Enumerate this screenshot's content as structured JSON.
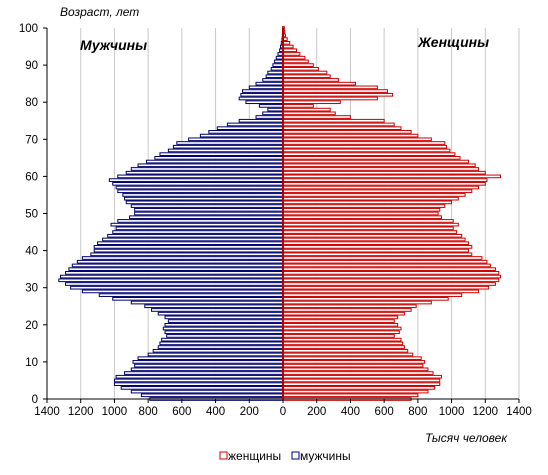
{
  "chart_data": {
    "type": "bar",
    "orientation": "horizontal",
    "subtype": "population-pyramid",
    "y_title": "Возраст,  лет",
    "x_title": "Тысяч человек",
    "left_label": "Мужчины",
    "right_label": "Женщины",
    "xlim": [
      -1400,
      1400
    ],
    "ylim": [
      0,
      100
    ],
    "x_ticks": [
      "1400",
      "1200",
      "1000",
      "800",
      "600",
      "400",
      "200",
      "0",
      "200",
      "400",
      "600",
      "800",
      "1000",
      "1200",
      "1400"
    ],
    "y_ticks": [
      "0",
      "10",
      "20",
      "30",
      "40",
      "50",
      "60",
      "70",
      "80",
      "90",
      "100"
    ],
    "grid": "vertical",
    "legend_position": "bottom",
    "ages": [
      0,
      1,
      2,
      3,
      4,
      5,
      6,
      7,
      8,
      9,
      10,
      11,
      12,
      13,
      14,
      15,
      16,
      17,
      18,
      19,
      20,
      21,
      22,
      23,
      24,
      25,
      26,
      27,
      28,
      29,
      30,
      31,
      32,
      33,
      34,
      35,
      36,
      37,
      38,
      39,
      40,
      41,
      42,
      43,
      44,
      45,
      46,
      47,
      48,
      49,
      50,
      51,
      52,
      53,
      54,
      55,
      56,
      57,
      58,
      59,
      60,
      61,
      62,
      63,
      64,
      65,
      66,
      67,
      68,
      69,
      70,
      71,
      72,
      73,
      74,
      75,
      76,
      77,
      78,
      79,
      80,
      81,
      82,
      83,
      84,
      85,
      86,
      87,
      88,
      89,
      90,
      91,
      92,
      93,
      94,
      95,
      96,
      97,
      98,
      99,
      100
    ],
    "series": [
      {
        "name": "женщины",
        "color": "#cc0000",
        "values": [
          760,
          800,
          860,
          900,
          930,
          930,
          940,
          890,
          860,
          830,
          840,
          820,
          770,
          740,
          720,
          710,
          700,
          660,
          690,
          700,
          680,
          660,
          680,
          720,
          760,
          790,
          880,
          980,
          1060,
          1160,
          1220,
          1260,
          1280,
          1290,
          1280,
          1260,
          1230,
          1210,
          1180,
          1120,
          1100,
          1120,
          1100,
          1080,
          1060,
          1030,
          1010,
          1040,
          1010,
          940,
          920,
          930,
          960,
          1000,
          1040,
          1080,
          1120,
          1160,
          1200,
          1210,
          1290,
          1200,
          1160,
          1140,
          1100,
          1050,
          1020,
          990,
          970,
          960,
          880,
          800,
          760,
          700,
          660,
          600,
          400,
          310,
          280,
          180,
          340,
          560,
          650,
          620,
          560,
          430,
          330,
          280,
          260,
          210,
          180,
          150,
          130,
          100,
          80,
          60,
          40,
          25,
          15,
          10,
          8
        ]
      },
      {
        "name": "мужчины",
        "color": "#00006e",
        "values": [
          790,
          840,
          900,
          960,
          1000,
          1000,
          990,
          940,
          900,
          880,
          890,
          860,
          800,
          770,
          740,
          730,
          720,
          690,
          700,
          710,
          700,
          680,
          700,
          740,
          780,
          820,
          900,
          1010,
          1090,
          1190,
          1260,
          1290,
          1330,
          1320,
          1290,
          1270,
          1250,
          1220,
          1190,
          1140,
          1120,
          1120,
          1100,
          1070,
          1040,
          1010,
          990,
          1020,
          980,
          910,
          880,
          880,
          900,
          930,
          940,
          950,
          980,
          990,
          1010,
          1030,
          980,
          930,
          900,
          860,
          810,
          760,
          730,
          680,
          650,
          630,
          560,
          490,
          440,
          390,
          330,
          260,
          160,
          120,
          90,
          140,
          220,
          260,
          250,
          240,
          200,
          160,
          120,
          100,
          90,
          70,
          60,
          50,
          40,
          30,
          20,
          15,
          10,
          6,
          4,
          3,
          2
        ]
      }
    ]
  }
}
